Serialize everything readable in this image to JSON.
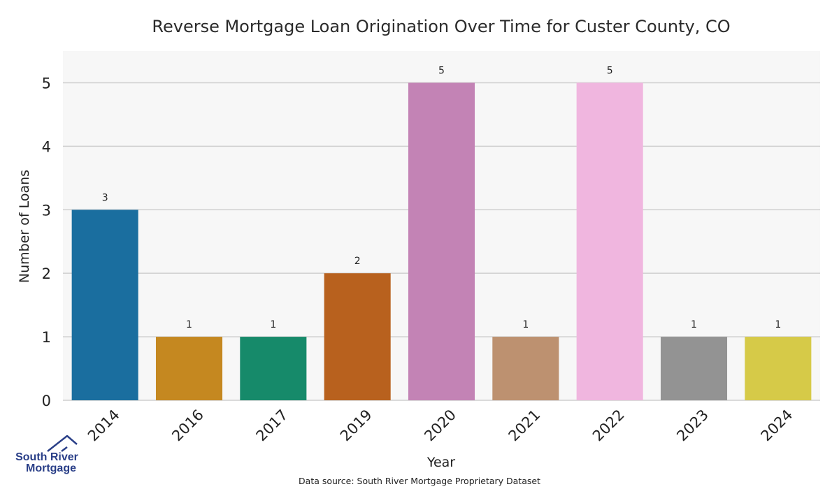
{
  "chart_data": {
    "type": "bar",
    "title": "Reverse Mortgage Loan Origination Over Time for Custer County, CO",
    "xlabel": "Year",
    "ylabel": "Number of Loans",
    "categories": [
      "2014",
      "2016",
      "2017",
      "2019",
      "2020",
      "2021",
      "2022",
      "2023",
      "2024"
    ],
    "values": [
      3,
      1,
      1,
      2,
      5,
      1,
      5,
      1,
      1
    ],
    "colors": [
      "#1a6e9f",
      "#c58820",
      "#168a6a",
      "#b8611e",
      "#c383b5",
      "#bd9170",
      "#f0b6df",
      "#939393",
      "#d6ca48"
    ],
    "ylim": [
      0,
      5.5
    ],
    "yticks": [
      0,
      1,
      2,
      3,
      4,
      5
    ],
    "grid": true,
    "plot_background": "#f7f7f7",
    "grid_color": "#cfcfcf"
  },
  "footer": {
    "source": "Data source: South River Mortgage Proprietary Dataset"
  },
  "logo": {
    "line1": "South River",
    "line2": "Mortgage",
    "color": "#2a3f88"
  }
}
